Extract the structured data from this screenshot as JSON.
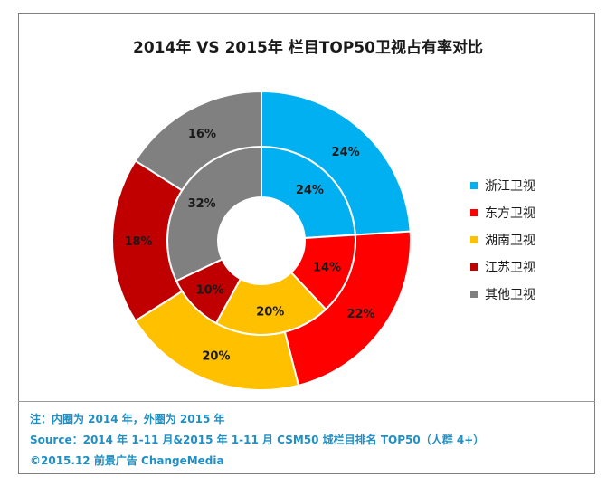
{
  "chart_data": {
    "type": "pie",
    "variant": "double-donut",
    "title": "2014年 VS 2015年 栏目TOP50卫视占有率对比",
    "categories": [
      "浙江卫视",
      "东方卫视",
      "湖南卫视",
      "江苏卫视",
      "其他卫视"
    ],
    "colors": [
      "#00b0f0",
      "#ff0000",
      "#ffc000",
      "#c00000",
      "#808080"
    ],
    "series": [
      {
        "ring": "inner",
        "values": [
          24,
          14,
          20,
          10,
          32
        ],
        "labels": [
          "24%",
          "14%",
          "20%",
          "10%",
          "32%"
        ]
      },
      {
        "ring": "outer",
        "values": [
          24,
          22,
          20,
          18,
          16
        ],
        "labels": [
          "24%",
          "22%",
          "20%",
          "18%",
          "16%"
        ]
      }
    ],
    "legend_position": "right"
  },
  "notes": [
    "注：内圈为 2014 年，外圈为 2015 年",
    "Source：2014 年 1-11 月&2015 年 1-11 月  CSM50 城栏目排名 TOP50（人群 4+）",
    "©2015.12  前景广告  ChangeMedia"
  ]
}
